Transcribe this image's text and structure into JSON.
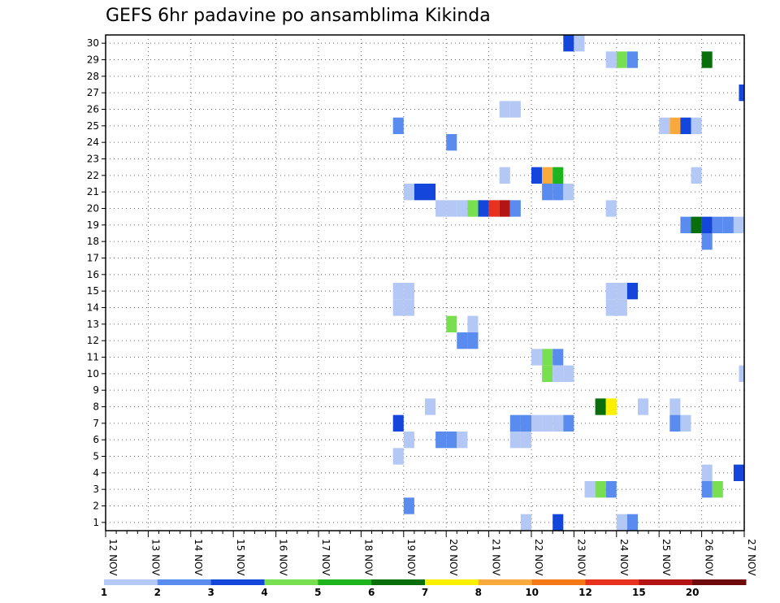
{
  "chart_data": {
    "type": "heatmap",
    "title": "GEFS 6hr padavine po ansamblima Kikinda",
    "x_tick_labels": [
      "12 NOV",
      "13 NOV",
      "14 NOV",
      "15 NOV",
      "16 NOV",
      "17 NOV",
      "18 NOV",
      "19 NOV",
      "20 NOV",
      "21 NOV",
      "22 NOV",
      "23 NOV",
      "24 NOV",
      "25 NOV",
      "26 NOV",
      "27 NOV"
    ],
    "y_tick_labels": [
      "1",
      "2",
      "3",
      "4",
      "5",
      "6",
      "7",
      "8",
      "9",
      "10",
      "11",
      "12",
      "13",
      "14",
      "15",
      "16",
      "17",
      "18",
      "19",
      "20",
      "21",
      "22",
      "23",
      "24",
      "25",
      "26",
      "27",
      "28",
      "29",
      "30"
    ],
    "x_unit": "6-hour steps from 12 NOV 00Z",
    "xlim": [
      0,
      60
    ],
    "ylim": [
      0.5,
      30.5
    ],
    "grid": true,
    "legend_placement": "bottom",
    "colorbar": {
      "labels": [
        "1",
        "2",
        "3",
        "4",
        "5",
        "6",
        "7",
        "8",
        "10",
        "12",
        "15",
        "20"
      ],
      "colors": [
        "#b4c8f5",
        "#5a8cf0",
        "#1446dc",
        "#78e050",
        "#1eb41e",
        "#0a6e0a",
        "#faf000",
        "#faaa3c",
        "#f57814",
        "#e6321e",
        "#b41414",
        "#6e0a0a"
      ]
    },
    "cells": [
      {
        "member": 30,
        "step": 43.5,
        "level": 2
      },
      {
        "member": 30,
        "step": 44.5,
        "level": 0
      },
      {
        "member": 29,
        "step": 47.5,
        "level": 0
      },
      {
        "member": 29,
        "step": 48.5,
        "level": 3
      },
      {
        "member": 29,
        "step": 49.5,
        "level": 1
      },
      {
        "member": 29,
        "step": 56.5,
        "level": 5
      },
      {
        "member": 27,
        "step": 60.0,
        "level": 2
      },
      {
        "member": 26,
        "step": 37.5,
        "level": 0
      },
      {
        "member": 26,
        "step": 38.5,
        "level": 0
      },
      {
        "member": 25,
        "step": 27.5,
        "level": 1
      },
      {
        "member": 25,
        "step": 52.5,
        "level": 0
      },
      {
        "member": 25,
        "step": 53.5,
        "level": 7
      },
      {
        "member": 25,
        "step": 54.5,
        "level": 2
      },
      {
        "member": 25,
        "step": 55.5,
        "level": 0
      },
      {
        "member": 24,
        "step": 32.5,
        "level": 1
      },
      {
        "member": 22,
        "step": 37.5,
        "level": 0
      },
      {
        "member": 22,
        "step": 40.5,
        "level": 2
      },
      {
        "member": 22,
        "step": 41.5,
        "level": 7
      },
      {
        "member": 22,
        "step": 42.5,
        "level": 4
      },
      {
        "member": 22,
        "step": 55.5,
        "level": 0
      },
      {
        "member": 21,
        "step": 28.5,
        "level": 0
      },
      {
        "member": 21,
        "step": 29.5,
        "level": 2
      },
      {
        "member": 21,
        "step": 30.5,
        "level": 2
      },
      {
        "member": 21,
        "step": 41.5,
        "level": 1
      },
      {
        "member": 21,
        "step": 42.5,
        "level": 1
      },
      {
        "member": 21,
        "step": 43.5,
        "level": 0
      },
      {
        "member": 20,
        "step": 31.5,
        "level": 0
      },
      {
        "member": 20,
        "step": 32.5,
        "level": 0
      },
      {
        "member": 20,
        "step": 33.5,
        "level": 0
      },
      {
        "member": 20,
        "step": 34.5,
        "level": 3
      },
      {
        "member": 20,
        "step": 35.5,
        "level": 2
      },
      {
        "member": 20,
        "step": 36.5,
        "level": 9
      },
      {
        "member": 20,
        "step": 37.5,
        "level": 10
      },
      {
        "member": 20,
        "step": 38.5,
        "level": 1
      },
      {
        "member": 20,
        "step": 47.5,
        "level": 0
      },
      {
        "member": 19,
        "step": 54.5,
        "level": 1
      },
      {
        "member": 19,
        "step": 55.5,
        "level": 5
      },
      {
        "member": 19,
        "step": 56.5,
        "level": 2
      },
      {
        "member": 19,
        "step": 57.5,
        "level": 1
      },
      {
        "member": 19,
        "step": 58.5,
        "level": 1
      },
      {
        "member": 19,
        "step": 59.5,
        "level": 0
      },
      {
        "member": 18,
        "step": 56.5,
        "level": 1
      },
      {
        "member": 15,
        "step": 27.5,
        "level": 0
      },
      {
        "member": 15,
        "step": 28.5,
        "level": 0
      },
      {
        "member": 15,
        "step": 47.5,
        "level": 0
      },
      {
        "member": 15,
        "step": 48.5,
        "level": 0
      },
      {
        "member": 15,
        "step": 49.5,
        "level": 2
      },
      {
        "member": 14,
        "step": 27.5,
        "level": 0
      },
      {
        "member": 14,
        "step": 28.5,
        "level": 0
      },
      {
        "member": 14,
        "step": 47.5,
        "level": 0
      },
      {
        "member": 14,
        "step": 48.5,
        "level": 0
      },
      {
        "member": 13,
        "step": 32.5,
        "level": 3
      },
      {
        "member": 13,
        "step": 34.5,
        "level": 0
      },
      {
        "member": 12,
        "step": 33.5,
        "level": 1
      },
      {
        "member": 12,
        "step": 34.5,
        "level": 1
      },
      {
        "member": 11,
        "step": 40.5,
        "level": 0
      },
      {
        "member": 11,
        "step": 41.5,
        "level": 3
      },
      {
        "member": 11,
        "step": 42.5,
        "level": 1
      },
      {
        "member": 10,
        "step": 41.5,
        "level": 3
      },
      {
        "member": 10,
        "step": 42.5,
        "level": 0
      },
      {
        "member": 10,
        "step": 43.5,
        "level": 0
      },
      {
        "member": 10,
        "step": 60.0,
        "level": 0
      },
      {
        "member": 8,
        "step": 30.5,
        "level": 0
      },
      {
        "member": 8,
        "step": 46.5,
        "level": 5
      },
      {
        "member": 8,
        "step": 47.5,
        "level": 6
      },
      {
        "member": 8,
        "step": 50.5,
        "level": 0
      },
      {
        "member": 8,
        "step": 53.5,
        "level": 0
      },
      {
        "member": 7,
        "step": 27.5,
        "level": 2
      },
      {
        "member": 7,
        "step": 38.5,
        "level": 1
      },
      {
        "member": 7,
        "step": 39.5,
        "level": 1
      },
      {
        "member": 7,
        "step": 40.5,
        "level": 0
      },
      {
        "member": 7,
        "step": 41.5,
        "level": 0
      },
      {
        "member": 7,
        "step": 42.5,
        "level": 0
      },
      {
        "member": 7,
        "step": 43.5,
        "level": 1
      },
      {
        "member": 7,
        "step": 53.5,
        "level": 1
      },
      {
        "member": 7,
        "step": 54.5,
        "level": 0
      },
      {
        "member": 6,
        "step": 28.5,
        "level": 0
      },
      {
        "member": 6,
        "step": 31.5,
        "level": 1
      },
      {
        "member": 6,
        "step": 32.5,
        "level": 1
      },
      {
        "member": 6,
        "step": 33.5,
        "level": 0
      },
      {
        "member": 6,
        "step": 38.5,
        "level": 0
      },
      {
        "member": 6,
        "step": 39.5,
        "level": 0
      },
      {
        "member": 5,
        "step": 27.5,
        "level": 0
      },
      {
        "member": 4,
        "step": 56.5,
        "level": 0
      },
      {
        "member": 4,
        "step": 59.5,
        "level": 2
      },
      {
        "member": 3,
        "step": 45.5,
        "level": 0
      },
      {
        "member": 3,
        "step": 46.5,
        "level": 3
      },
      {
        "member": 3,
        "step": 47.5,
        "level": 1
      },
      {
        "member": 3,
        "step": 56.5,
        "level": 1
      },
      {
        "member": 3,
        "step": 57.5,
        "level": 3
      },
      {
        "member": 2,
        "step": 28.5,
        "level": 1
      },
      {
        "member": 1,
        "step": 39.5,
        "level": 0
      },
      {
        "member": 1,
        "step": 42.5,
        "level": 2
      },
      {
        "member": 1,
        "step": 48.5,
        "level": 0
      },
      {
        "member": 1,
        "step": 49.5,
        "level": 1
      }
    ]
  }
}
